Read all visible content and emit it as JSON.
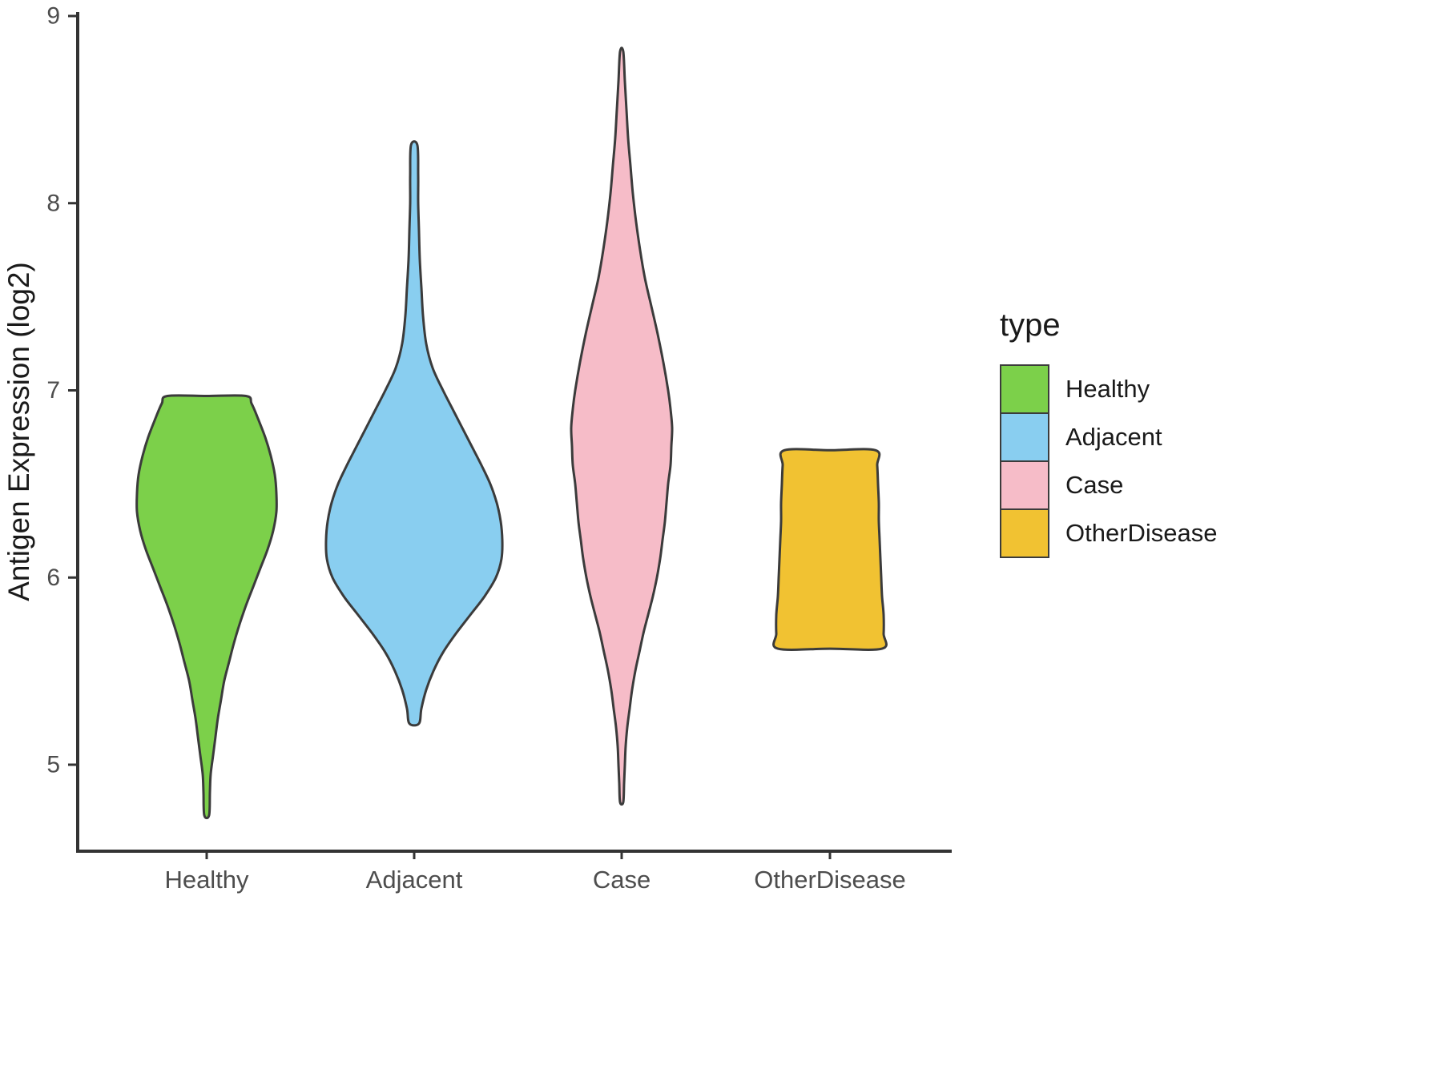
{
  "chart_data": {
    "type": "violin",
    "title": "",
    "xlabel": "",
    "ylabel": "Antigen Expression (log2)",
    "ylim": [
      4.5,
      9
    ],
    "yticks": [
      5,
      6,
      7,
      8,
      9
    ],
    "categories": [
      "Healthy",
      "Adjacent",
      "Case",
      "OtherDisease"
    ],
    "legend_title": "type",
    "legend_position": "right",
    "grid": false,
    "outline_color": "#3B3B3B",
    "tick_label_color": "#4D4D4D",
    "axis_title_color": "#1a1a1a",
    "profile_format": "[antigen_expression_log2, half_width_px]",
    "series": [
      {
        "name": "Healthy",
        "color": "#7CD04A",
        "flat_top": true,
        "flat_bottom": false,
        "min": 4.73,
        "max": 6.97,
        "peak_density_at": 6.4,
        "profile": [
          [
            6.97,
            49
          ],
          [
            6.93,
            56
          ],
          [
            6.85,
            64
          ],
          [
            6.75,
            73
          ],
          [
            6.65,
            80
          ],
          [
            6.55,
            85
          ],
          [
            6.45,
            87
          ],
          [
            6.35,
            87
          ],
          [
            6.25,
            83
          ],
          [
            6.15,
            76
          ],
          [
            6.05,
            67
          ],
          [
            5.95,
            58
          ],
          [
            5.85,
            49
          ],
          [
            5.75,
            41
          ],
          [
            5.65,
            34
          ],
          [
            5.55,
            28
          ],
          [
            5.45,
            22
          ],
          [
            5.35,
            18
          ],
          [
            5.25,
            14
          ],
          [
            5.15,
            11
          ],
          [
            5.05,
            8
          ],
          [
            4.95,
            5
          ],
          [
            4.85,
            4
          ],
          [
            4.73,
            3
          ]
        ]
      },
      {
        "name": "Adjacent",
        "color": "#89CEF0",
        "flat_top": false,
        "flat_bottom": false,
        "min": 5.22,
        "max": 8.31,
        "peak_density_at": 6.2,
        "profile": [
          [
            8.31,
            4
          ],
          [
            8.15,
            5
          ],
          [
            8.0,
            5
          ],
          [
            7.85,
            6
          ],
          [
            7.7,
            7
          ],
          [
            7.55,
            9
          ],
          [
            7.4,
            11
          ],
          [
            7.25,
            15
          ],
          [
            7.12,
            23
          ],
          [
            7.0,
            36
          ],
          [
            6.9,
            48
          ],
          [
            6.8,
            60
          ],
          [
            6.7,
            72
          ],
          [
            6.6,
            84
          ],
          [
            6.5,
            95
          ],
          [
            6.4,
            103
          ],
          [
            6.3,
            108
          ],
          [
            6.2,
            110
          ],
          [
            6.1,
            109
          ],
          [
            6.0,
            102
          ],
          [
            5.9,
            88
          ],
          [
            5.8,
            70
          ],
          [
            5.7,
            52
          ],
          [
            5.6,
            36
          ],
          [
            5.5,
            24
          ],
          [
            5.4,
            15
          ],
          [
            5.3,
            9
          ],
          [
            5.22,
            6
          ]
        ]
      },
      {
        "name": "Case",
        "color": "#F6BCC8",
        "flat_top": false,
        "flat_bottom": false,
        "min": 4.8,
        "max": 8.81,
        "peak_density_at": 6.8,
        "profile": [
          [
            8.81,
            2
          ],
          [
            8.65,
            4
          ],
          [
            8.5,
            6
          ],
          [
            8.35,
            8
          ],
          [
            8.2,
            11
          ],
          [
            8.05,
            14
          ],
          [
            7.9,
            18
          ],
          [
            7.75,
            23
          ],
          [
            7.6,
            29
          ],
          [
            7.45,
            37
          ],
          [
            7.3,
            45
          ],
          [
            7.15,
            52
          ],
          [
            7.0,
            58
          ],
          [
            6.9,
            61
          ],
          [
            6.8,
            63
          ],
          [
            6.7,
            62
          ],
          [
            6.6,
            61
          ],
          [
            6.5,
            58
          ],
          [
            6.4,
            56
          ],
          [
            6.3,
            54
          ],
          [
            6.2,
            51
          ],
          [
            6.1,
            48
          ],
          [
            6.0,
            44
          ],
          [
            5.9,
            39
          ],
          [
            5.8,
            33
          ],
          [
            5.7,
            27
          ],
          [
            5.6,
            22
          ],
          [
            5.5,
            17
          ],
          [
            5.4,
            13
          ],
          [
            5.3,
            10
          ],
          [
            5.2,
            7
          ],
          [
            5.1,
            5
          ],
          [
            5.0,
            4
          ],
          [
            4.9,
            3
          ],
          [
            4.8,
            2
          ]
        ]
      },
      {
        "name": "OtherDisease",
        "color": "#F1C232",
        "flat_top": true,
        "flat_bottom": true,
        "min": 5.62,
        "max": 6.68,
        "peak_density_at": 5.8,
        "profile": [
          [
            6.68,
            57
          ],
          [
            6.6,
            59
          ],
          [
            6.5,
            60
          ],
          [
            6.4,
            61
          ],
          [
            6.3,
            61
          ],
          [
            6.2,
            62
          ],
          [
            6.1,
            63
          ],
          [
            6.0,
            64
          ],
          [
            5.9,
            65
          ],
          [
            5.8,
            67
          ],
          [
            5.7,
            67
          ],
          [
            5.62,
            65
          ]
        ]
      }
    ]
  }
}
